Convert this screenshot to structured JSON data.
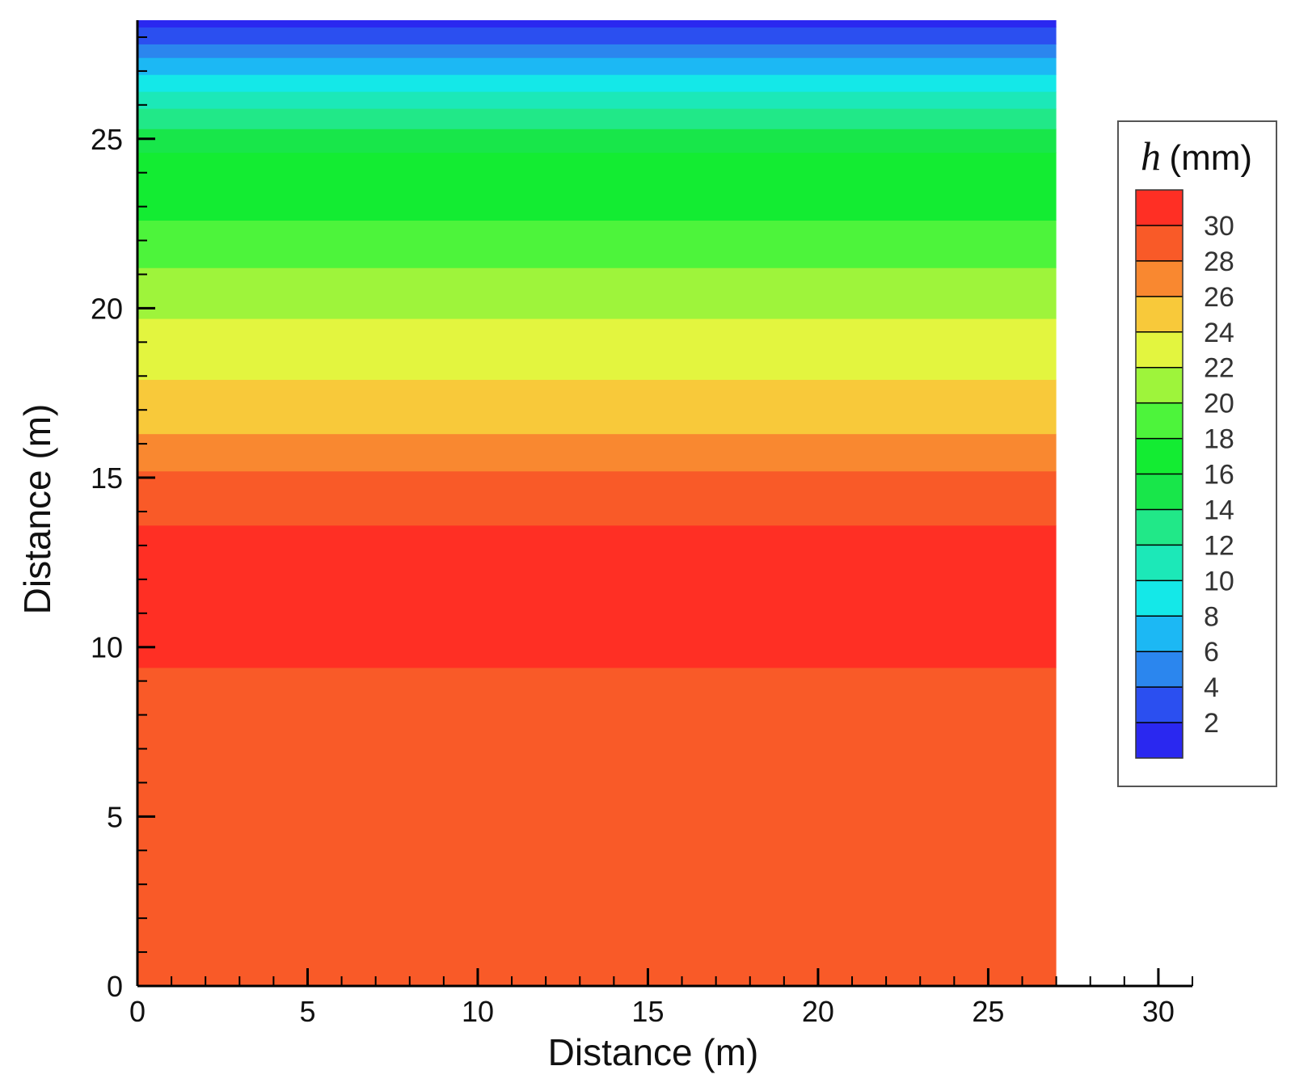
{
  "chart_data": {
    "type": "heatmap",
    "subtype": "filled-contour",
    "xlabel": "Distance (m)",
    "ylabel": "Distance (m)",
    "xlim": [
      0,
      31
    ],
    "ylim": [
      0,
      28.5
    ],
    "domain_x": [
      0,
      27
    ],
    "x_ticks": [
      "0",
      "5",
      "10",
      "15",
      "20",
      "25",
      "30"
    ],
    "y_ticks": [
      "0",
      "5",
      "10",
      "15",
      "20",
      "25"
    ],
    "x_tick_values": [
      0,
      5,
      10,
      15,
      20,
      25,
      30
    ],
    "y_tick_values": [
      0,
      5,
      10,
      15,
      20,
      25
    ],
    "bands": [
      {
        "y0": 0.0,
        "y1": 9.4,
        "level": 29,
        "color": "#f95a28"
      },
      {
        "y0": 9.4,
        "y1": 13.6,
        "level": 31,
        "color": "#ff2f24"
      },
      {
        "y0": 13.6,
        "y1": 15.2,
        "level": 29,
        "color": "#f95a28"
      },
      {
        "y0": 15.2,
        "y1": 16.3,
        "level": 27,
        "color": "#f98830"
      },
      {
        "y0": 16.3,
        "y1": 17.9,
        "level": 25,
        "color": "#f8c93a"
      },
      {
        "y0": 17.9,
        "y1": 19.7,
        "level": 23,
        "color": "#e3f53f"
      },
      {
        "y0": 19.7,
        "y1": 21.2,
        "level": 21,
        "color": "#9ef43b"
      },
      {
        "y0": 21.2,
        "y1": 22.6,
        "level": 19,
        "color": "#4df43b"
      },
      {
        "y0": 22.6,
        "y1": 24.6,
        "level": 17,
        "color": "#13ec32"
      },
      {
        "y0": 24.6,
        "y1": 25.3,
        "level": 15,
        "color": "#18e64a"
      },
      {
        "y0": 25.3,
        "y1": 25.9,
        "level": 13,
        "color": "#21e888"
      },
      {
        "y0": 25.9,
        "y1": 26.4,
        "level": 11,
        "color": "#1ce8b8"
      },
      {
        "y0": 26.4,
        "y1": 26.9,
        "level": 9,
        "color": "#14e8e8"
      },
      {
        "y0": 26.9,
        "y1": 27.4,
        "level": 7,
        "color": "#1cb8f4"
      },
      {
        "y0": 27.4,
        "y1": 27.8,
        "level": 5,
        "color": "#2b86ee"
      },
      {
        "y0": 27.8,
        "y1": 28.3,
        "level": 3,
        "color": "#2b4ff0"
      },
      {
        "y0": 28.3,
        "y1": 28.5,
        "level": 1,
        "color": "#2a28f0"
      }
    ],
    "legend": {
      "title_symbol": "h",
      "title_unit": "(mm)",
      "placement": "right",
      "levels": [
        "30",
        "28",
        "26",
        "24",
        "22",
        "20",
        "18",
        "16",
        "14",
        "12",
        "10",
        "8",
        "6",
        "4",
        "2"
      ],
      "colors": [
        "#ff2f24",
        "#f95a28",
        "#f98830",
        "#f8c93a",
        "#e3f53f",
        "#9ef43b",
        "#4df43b",
        "#13ec32",
        "#18e64a",
        "#21e888",
        "#1ce8b8",
        "#14e8e8",
        "#1cb8f4",
        "#2b86ee",
        "#2b4ff0",
        "#2a28f0"
      ]
    }
  }
}
